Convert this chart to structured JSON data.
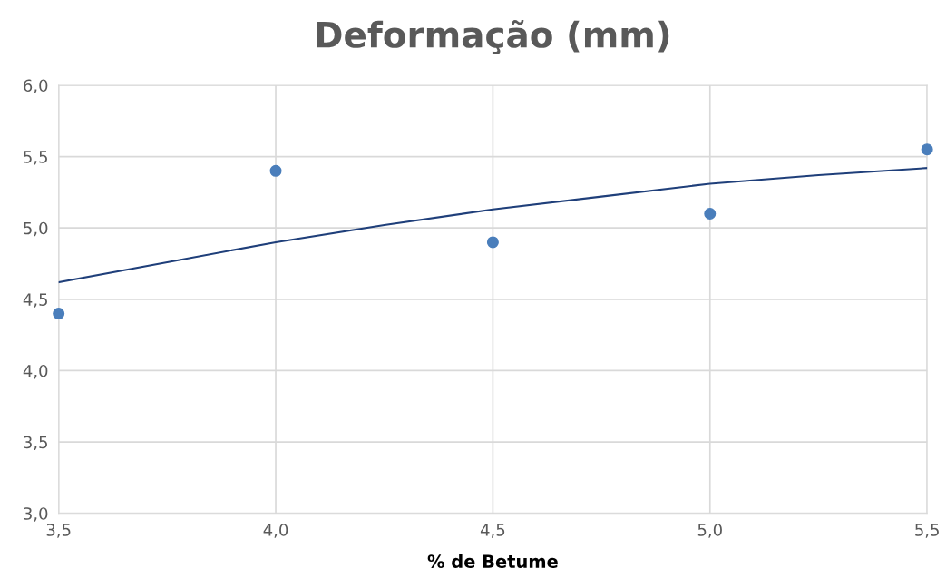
{
  "chart_data": {
    "type": "scatter",
    "title": "Deformação (mm)",
    "xlabel": "% de Betume",
    "series": [
      {
        "marker": "circle",
        "color": "#4a7ebb",
        "x": [
          3.5,
          4.0,
          4.5,
          5.0,
          5.5
        ],
        "values": [
          4.4,
          5.4,
          4.9,
          5.1,
          5.55
        ]
      },
      {
        "type": "line",
        "marker": "none",
        "color": "#1f3f7a",
        "x": [
          3.5,
          3.75,
          4.0,
          4.25,
          4.5,
          4.75,
          5.0,
          5.25,
          5.5
        ],
        "values": [
          4.62,
          4.76,
          4.9,
          5.02,
          5.13,
          5.22,
          5.31,
          5.37,
          5.42
        ]
      }
    ],
    "grid": true,
    "legend": false,
    "xlim": [
      3.5,
      5.5
    ],
    "xticks": [
      {
        "value": 3.5,
        "label": "3,5"
      },
      {
        "value": 4.0,
        "label": "4,0"
      },
      {
        "value": 4.5,
        "label": "4,5"
      },
      {
        "value": 5.0,
        "label": "5,0"
      },
      {
        "value": 5.5,
        "label": "5,5"
      }
    ],
    "ylim": [
      3.0,
      6.0
    ],
    "yticks": [
      {
        "value": 3.0,
        "label": "3,0"
      },
      {
        "value": 3.5,
        "label": "3,5"
      },
      {
        "value": 4.0,
        "label": "4,0"
      },
      {
        "value": 4.5,
        "label": "4,5"
      },
      {
        "value": 5.0,
        "label": "5,0"
      },
      {
        "value": 5.5,
        "label": "5,5"
      },
      {
        "value": 6.0,
        "label": "6,0"
      }
    ]
  }
}
